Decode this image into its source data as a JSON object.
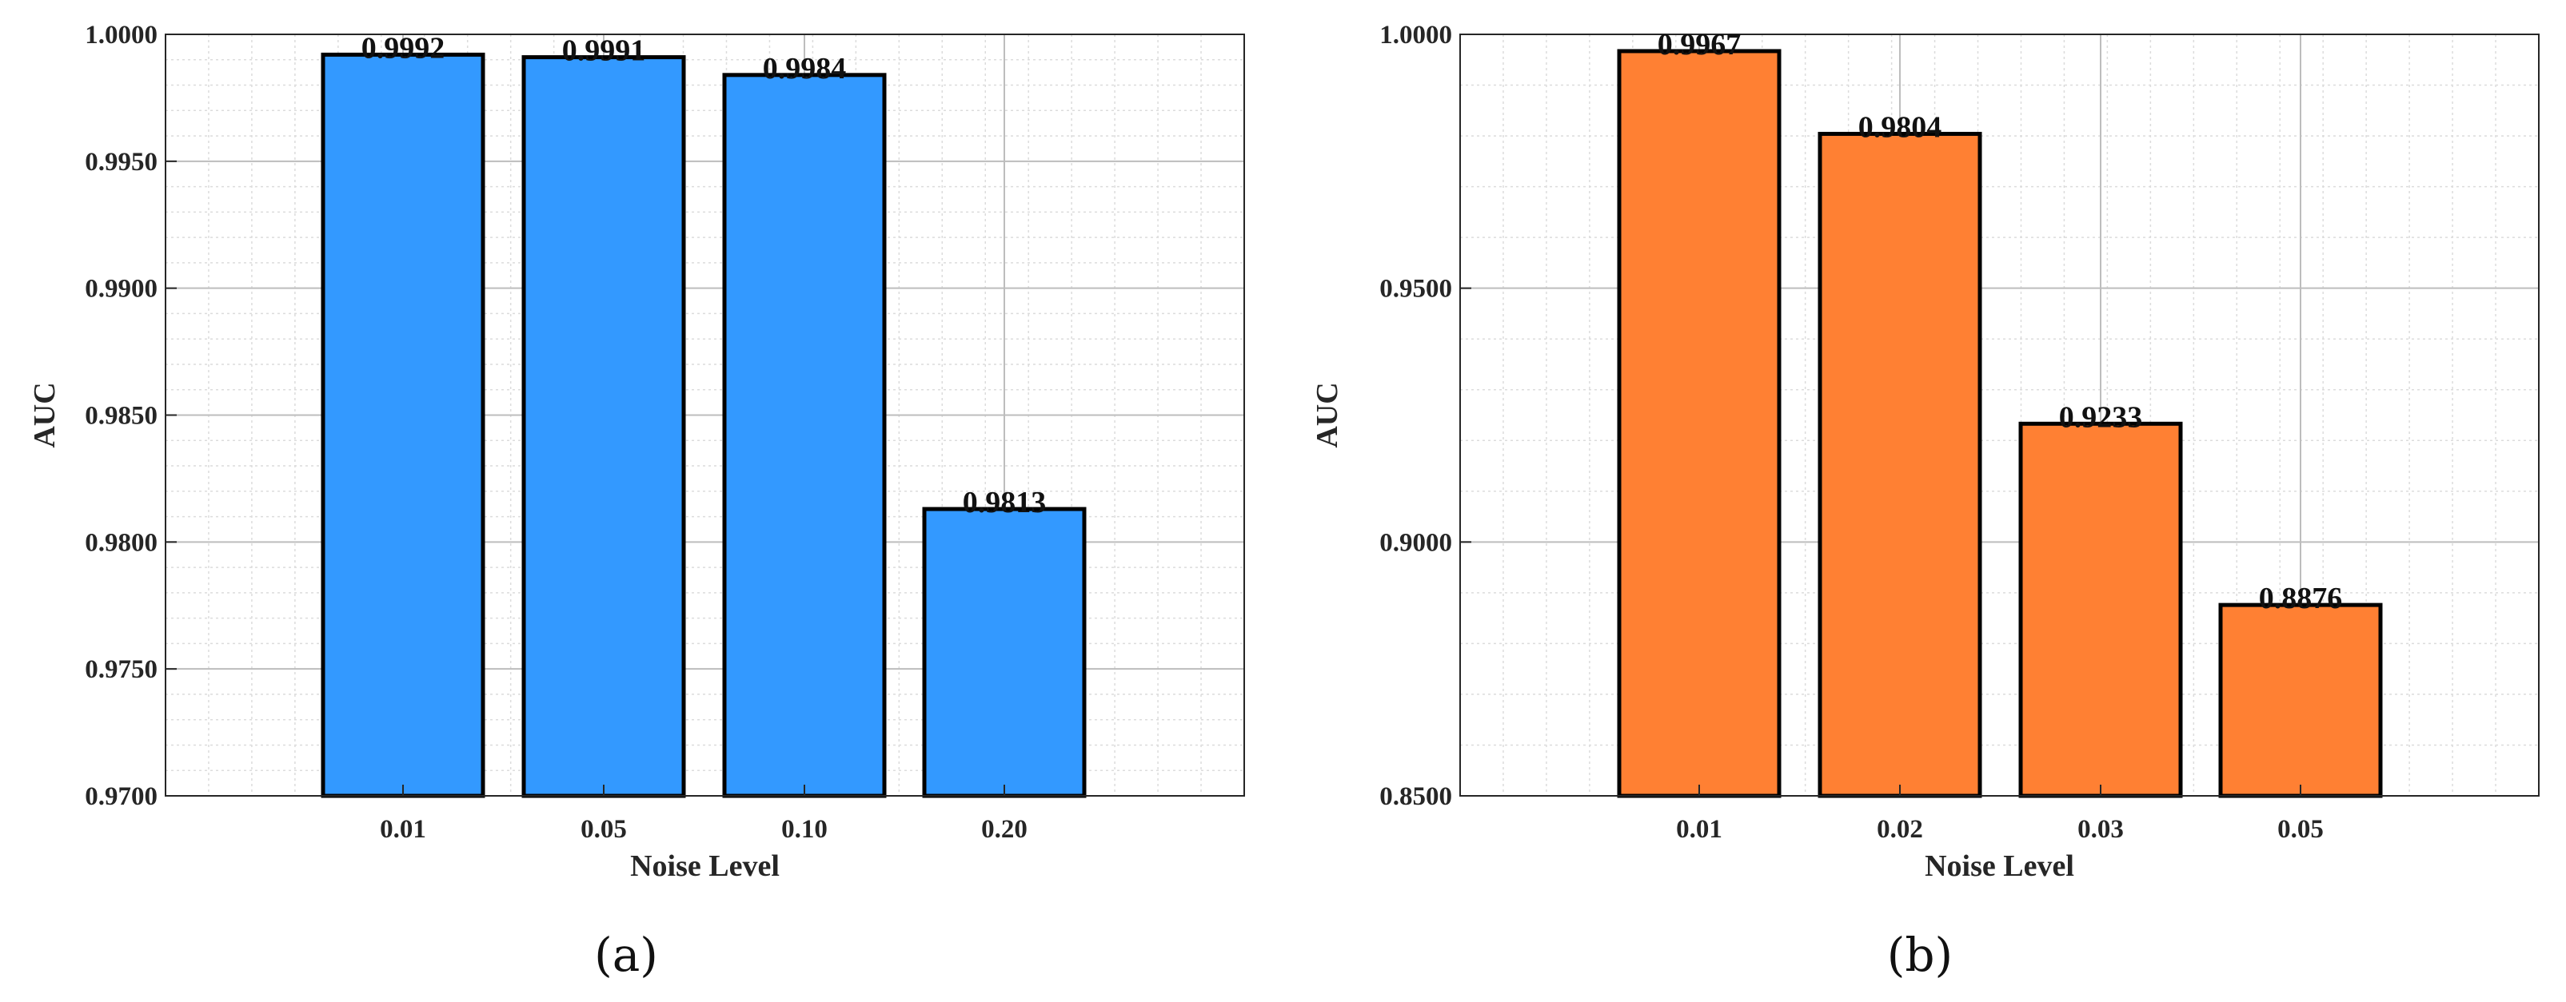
{
  "chart_data": [
    {
      "type": "bar",
      "caption": "(a)",
      "categories": [
        "0.01",
        "0.05",
        "0.10",
        "0.20"
      ],
      "values": [
        0.9992,
        0.9991,
        0.9984,
        0.9813
      ],
      "value_labels": [
        "0.9992",
        "0.9991",
        "0.9984",
        "0.9813"
      ],
      "xlabel": "Noise Level",
      "ylabel": "AUC",
      "ylim": [
        0.97,
        1.0
      ],
      "yticks": [
        "0.9700",
        "0.9750",
        "0.9800",
        "0.9850",
        "0.9900",
        "0.9950",
        "1.0000"
      ],
      "grid": true,
      "minor_grid": true,
      "bar_color": "#3399FF",
      "edge_color": "#000000"
    },
    {
      "type": "bar",
      "caption": "(b)",
      "categories": [
        "0.01",
        "0.02",
        "0.03",
        "0.05"
      ],
      "values": [
        0.9967,
        0.9804,
        0.9233,
        0.8876
      ],
      "value_labels": [
        "0.9967",
        "0.9804",
        "0.9233",
        "0.8876"
      ],
      "xlabel": "Noise Level",
      "ylabel": "AUC",
      "ylim": [
        0.85,
        1.0
      ],
      "yticks": [
        "0.8500",
        "0.9000",
        "0.9500",
        "1.0000"
      ],
      "grid": true,
      "minor_grid": true,
      "bar_color": "#FF8033",
      "edge_color": "#000000"
    }
  ]
}
